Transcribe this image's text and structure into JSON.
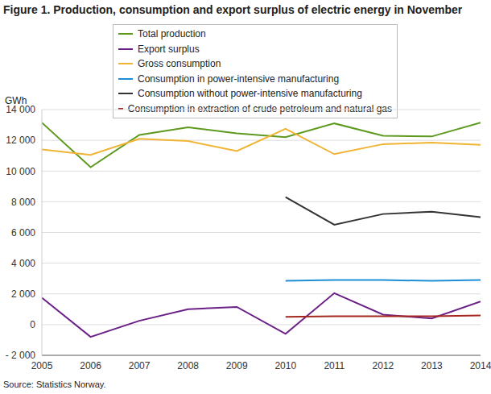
{
  "chart_data": {
    "type": "line",
    "title": "Figure 1. Production, consumption and export surplus of electric energy in November",
    "y_label": "GWh",
    "source": "Source: Statistics Norway.",
    "x": [
      2005,
      2006,
      2007,
      2008,
      2009,
      2010,
      2011,
      2012,
      2013,
      2014
    ],
    "xlim": [
      2005,
      2014
    ],
    "xticks": [
      2005,
      2006,
      2007,
      2008,
      2009,
      2010,
      2011,
      2012,
      2013,
      2014
    ],
    "ylim": [
      -2000,
      14000
    ],
    "yticks": [
      {
        "value": -2000,
        "label": "- 2 000"
      },
      0,
      {
        "value": 2000,
        "label": "2 000"
      },
      {
        "value": 4000,
        "label": "4 000"
      },
      {
        "value": 6000,
        "label": "6 000"
      },
      {
        "value": 8000,
        "label": "8 000"
      },
      {
        "value": 10000,
        "label": "10 000"
      },
      {
        "value": 12000,
        "label": "12 000"
      },
      {
        "value": 14000,
        "label": "14 000"
      }
    ],
    "grid": true,
    "legend": "top",
    "series": [
      {
        "name": "Total production",
        "color": "#5e9a1f",
        "values": [
          13150,
          10250,
          12350,
          12850,
          12450,
          12200,
          13100,
          12300,
          12250,
          13150
        ]
      },
      {
        "name": "Export surplus",
        "color": "#6b2088",
        "values": [
          1750,
          -800,
          250,
          1000,
          1150,
          -600,
          2050,
          650,
          400,
          1500
        ]
      },
      {
        "name": "Gross consumption",
        "color": "#f0b434",
        "values": [
          11400,
          11050,
          12100,
          11950,
          11300,
          12750,
          11100,
          11750,
          11850,
          11700
        ]
      },
      {
        "name": "Consumption in power-intensive manufacturing",
        "color": "#1e8fd5",
        "values": [
          null,
          null,
          null,
          null,
          null,
          2850,
          2900,
          2900,
          2850,
          2900
        ]
      },
      {
        "name": "Consumption without power-intensive manufacturing",
        "color": "#333333",
        "values": [
          null,
          null,
          null,
          null,
          null,
          8300,
          6500,
          7200,
          7350,
          7000
        ]
      },
      {
        "name": "Consumption in extraction of crude petroleum and natural gas",
        "color": "#a3281f",
        "values": [
          null,
          null,
          null,
          null,
          null,
          500,
          550,
          550,
          550,
          600
        ]
      }
    ]
  }
}
